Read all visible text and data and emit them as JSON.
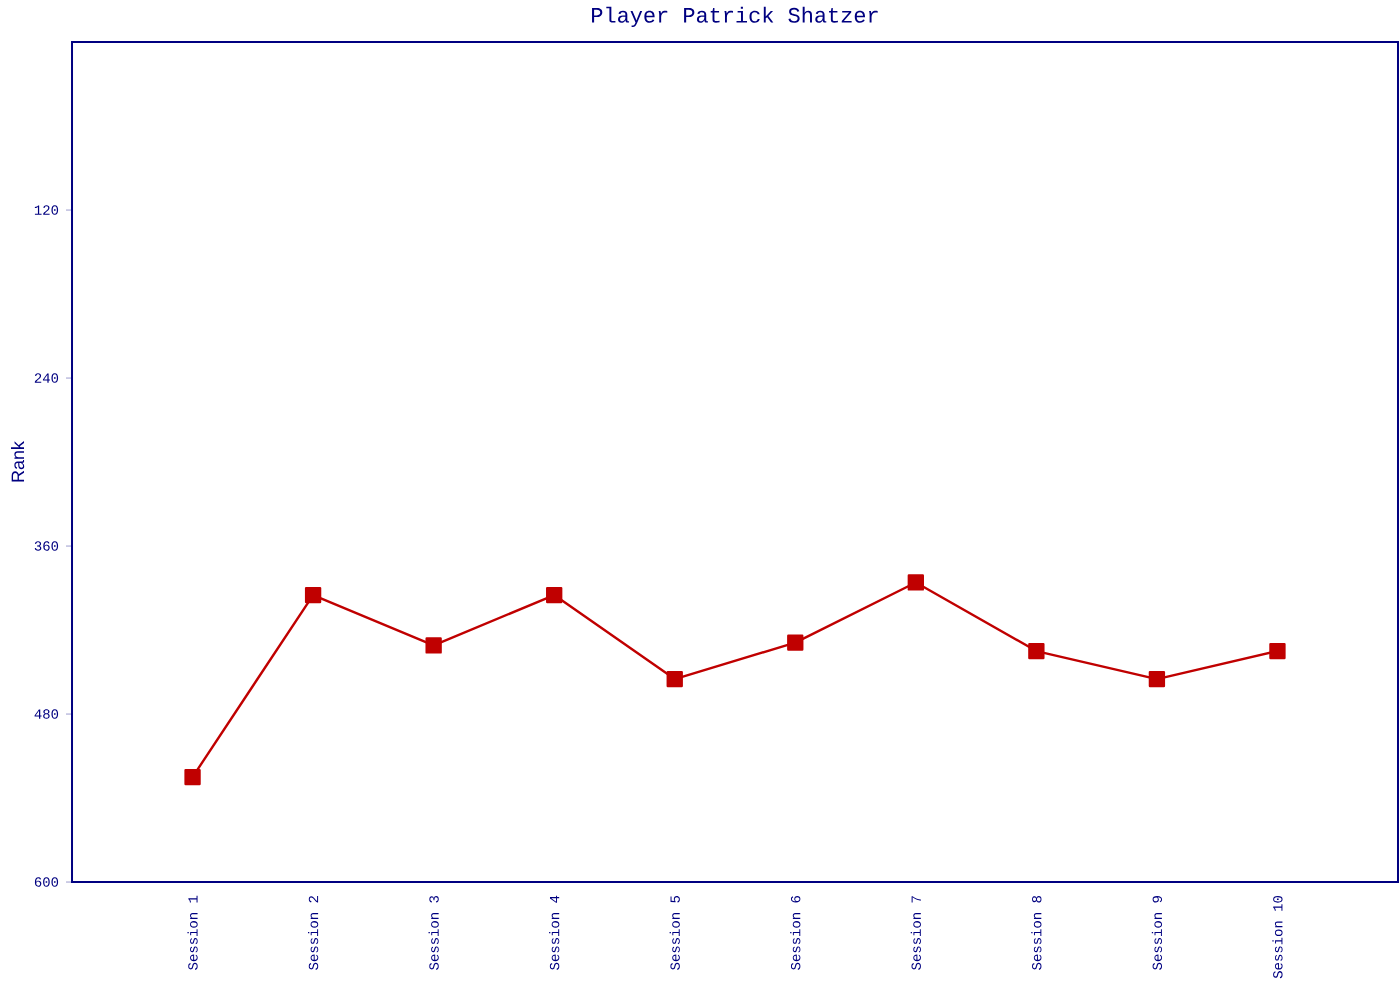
{
  "chart_data": {
    "type": "line",
    "title": "Player Patrick Shatzer",
    "ylabel": "Rank",
    "categories": [
      "Session 1",
      "Session 2",
      "Session 3",
      "Session 4",
      "Session 5",
      "Session 6",
      "Session 7",
      "Session 8",
      "Session 9",
      "Session 10"
    ],
    "series": [
      {
        "color": "#c00000",
        "values": [
          525,
          395,
          431,
          395,
          455,
          429,
          386,
          435,
          455,
          435
        ]
      }
    ],
    "ylim": [
      600,
      0
    ],
    "yticks": [
      120,
      240,
      360,
      480,
      600
    ],
    "marker": "square",
    "line_style": "solid"
  }
}
